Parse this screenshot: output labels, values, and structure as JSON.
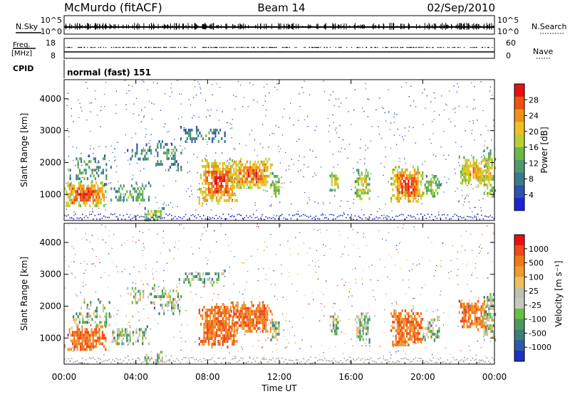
{
  "header": {
    "station": "McMurdo (fitACF)",
    "beam": "Beam 14",
    "date": "02/Sep/2010"
  },
  "noise_panel": {
    "left_label": "N.Sky",
    "right_label": "N.Search",
    "left_ticks": [
      "10^5",
      "10^0"
    ],
    "right_ticks": [
      "10^5",
      "10^0"
    ]
  },
  "freq_panel": {
    "left_label_line1": "Freq.",
    "left_label_line2": "[MHz]",
    "left_ticks": [
      "18",
      "8"
    ],
    "right_label": "Nave",
    "right_ticks": [
      "60",
      "0"
    ]
  },
  "cpid_panel": {
    "label": "CPID",
    "mode_text": "normal (fast) 151"
  },
  "chart_data": [
    {
      "type": "heatmap",
      "name": "Power",
      "ylabel": "Slant Range [km]",
      "ylim": [
        180,
        4600
      ],
      "yticks": [
        "1000",
        "2000",
        "3000",
        "4000"
      ],
      "xlim": [
        0,
        24
      ],
      "colorbar_label": "Power [dB]",
      "colorbar_ticks": [
        "4",
        "8",
        "12",
        "16",
        "20",
        "24",
        "28"
      ],
      "colorbar_colors": [
        "#1c24d8",
        "#2e52b0",
        "#3a7a8a",
        "#4e9a70",
        "#6cb84a",
        "#b8d030",
        "#f0c020",
        "#f09018",
        "#f05010",
        "#e81010"
      ],
      "grid": false
    },
    {
      "type": "heatmap",
      "name": "Velocity",
      "ylabel": "Slant Range [km]",
      "ylim": [
        180,
        4600
      ],
      "yticks": [
        "1000",
        "2000",
        "3000",
        "4000"
      ],
      "xlim": [
        0,
        24
      ],
      "colorbar_label": "Velocity [m s⁻¹]",
      "colorbar_ticks": [
        "1000",
        "500",
        "100",
        "25",
        "-25",
        "-100",
        "-500",
        "-1000"
      ],
      "colorbar_colors": [
        "#1c30c8",
        "#2c5aa8",
        "#3c7e7c",
        "#4a9a60",
        "#68c040",
        "#c8c8c0",
        "#c0c0b0",
        "#f0c060",
        "#f09a30",
        "#f07818",
        "#f04818",
        "#e81010"
      ],
      "grid": false
    }
  ],
  "x_axis": {
    "ticks": [
      "00:00",
      "04:00",
      "08:00",
      "12:00",
      "16:00",
      "20:00",
      "00:00"
    ],
    "label": "Time UT"
  },
  "colors": {
    "axis": "#000000",
    "power_bg": "#ffffff",
    "velocity_bg": "#ffffff"
  }
}
